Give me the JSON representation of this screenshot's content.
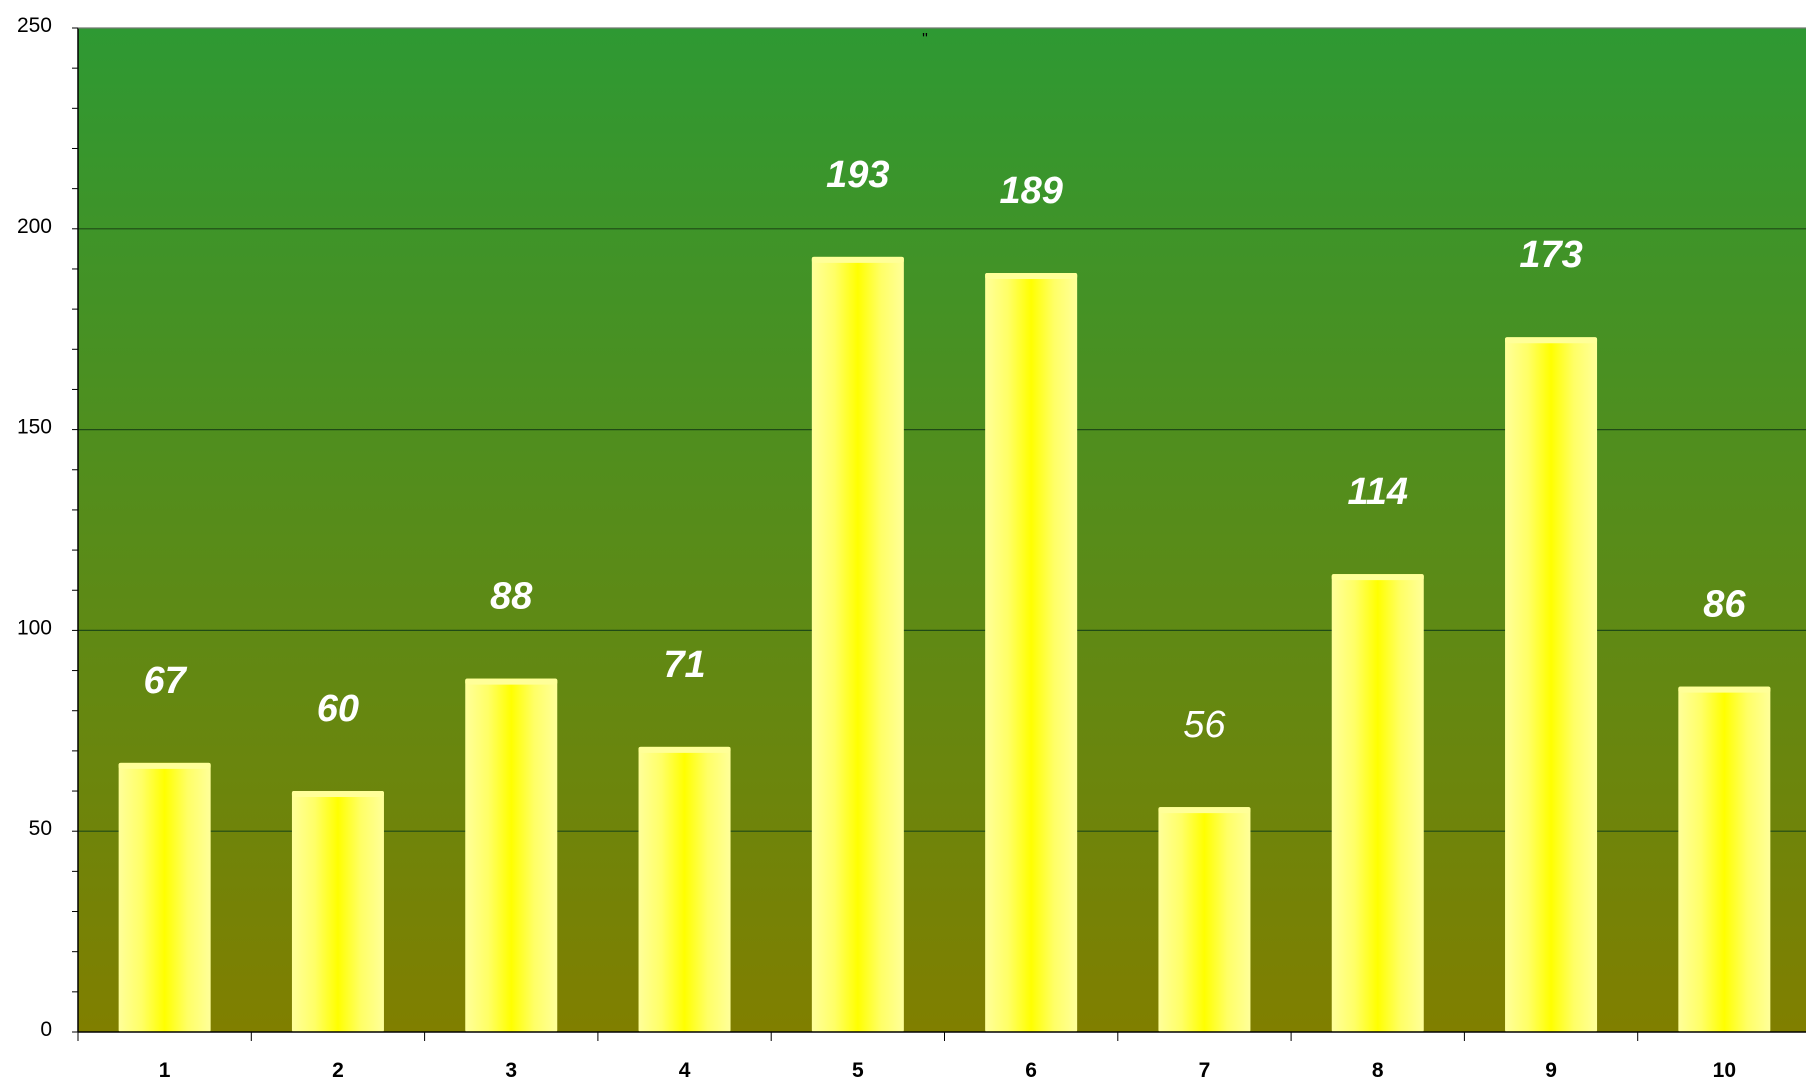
{
  "chart_data": {
    "type": "bar",
    "title": "\"",
    "xlabel": "",
    "ylabel": "",
    "categories": [
      "1",
      "2",
      "3",
      "4",
      "5",
      "6",
      "7",
      "8",
      "9",
      "10"
    ],
    "values": [
      67,
      60,
      88,
      71,
      193,
      189,
      56,
      114,
      173,
      86
    ],
    "ylim": [
      0,
      250
    ],
    "y_ticks": [
      0,
      50,
      100,
      150,
      200,
      250
    ],
    "grid": true,
    "legend": "none",
    "colors": {
      "plot_bg_top": "#2e9933",
      "plot_bg_bottom": "#807f00",
      "bar_center": "#ffff00",
      "bar_edge": "#ffff99",
      "label": "#ffffff",
      "gridline": "#1f4a16"
    }
  }
}
